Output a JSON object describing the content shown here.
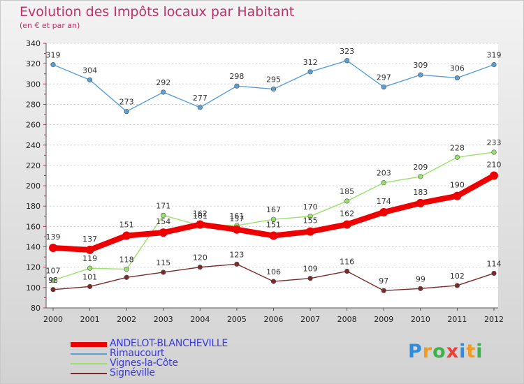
{
  "chart_data": {
    "type": "line",
    "title": "Evolution des Impôts locaux par Habitant",
    "subtitle": "(en € et par an)",
    "xlabel": "",
    "ylabel": "",
    "x": [
      "2000",
      "2001",
      "2002",
      "2003",
      "2004",
      "2005",
      "2006",
      "2007",
      "2008",
      "2009",
      "2010",
      "2011",
      "2012"
    ],
    "ylim": [
      80,
      340
    ],
    "yticks": [
      80,
      100,
      120,
      140,
      160,
      180,
      200,
      220,
      240,
      260,
      280,
      300,
      320,
      340
    ],
    "grid": "horizontal-dashed",
    "legend_position": "bottom-left",
    "series": [
      {
        "name": "ANDELOT-BLANCHEVILLE",
        "color": "#ee0000",
        "values": [
          139,
          137,
          151,
          154,
          162,
          157,
          151,
          155,
          162,
          174,
          183,
          190,
          210
        ]
      },
      {
        "name": "Rimaucourt",
        "color": "#5a9fd6",
        "values": [
          319,
          304,
          273,
          292,
          277,
          298,
          295,
          312,
          323,
          297,
          309,
          306,
          319
        ]
      },
      {
        "name": "Vignes-la-Côte",
        "color": "#99e26a",
        "values": [
          107,
          119,
          118,
          171,
          161,
          161,
          167,
          170,
          185,
          203,
          209,
          228,
          233
        ]
      },
      {
        "name": "Signéville",
        "color": "#7a2a2a",
        "values": [
          98,
          101,
          110,
          115,
          120,
          123,
          106,
          109,
          116,
          97,
          99,
          102,
          114
        ]
      }
    ],
    "data_labels": [
      [
        139,
        137,
        151,
        154,
        162,
        157,
        151,
        155,
        162,
        174,
        183,
        190,
        210
      ],
      [
        319,
        304,
        273,
        292,
        277,
        298,
        295,
        312,
        323,
        297,
        309,
        306,
        319
      ],
      [
        107,
        119,
        118,
        171,
        161,
        161,
        167,
        170,
        185,
        203,
        209,
        228,
        233
      ],
      [
        98,
        101,
        null,
        115,
        120,
        123,
        106,
        109,
        116,
        97,
        99,
        102,
        114
      ]
    ]
  },
  "brand": {
    "letters": [
      "P",
      "r",
      "o",
      "x",
      "i",
      "t",
      "i"
    ],
    "colors": [
      "#2e8de0",
      "#f39a1f",
      "#3bb34a",
      "#e8403a",
      "#2e8de0",
      "#f39a1f",
      "#3bb34a"
    ]
  }
}
